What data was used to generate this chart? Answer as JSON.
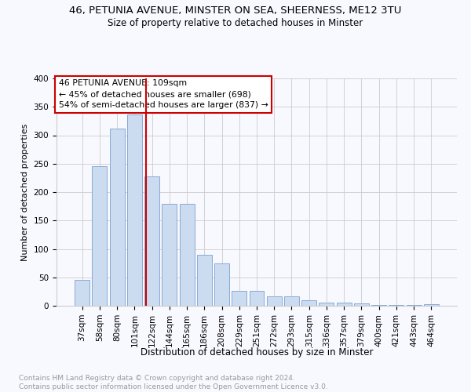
{
  "title1": "46, PETUNIA AVENUE, MINSTER ON SEA, SHEERNESS, ME12 3TU",
  "title2": "Size of property relative to detached houses in Minster",
  "xlabel": "Distribution of detached houses by size in Minster",
  "ylabel": "Number of detached properties",
  "footer1": "Contains HM Land Registry data © Crown copyright and database right 2024.",
  "footer2": "Contains public sector information licensed under the Open Government Licence v3.0.",
  "bar_labels": [
    "37sqm",
    "58sqm",
    "80sqm",
    "101sqm",
    "122sqm",
    "144sqm",
    "165sqm",
    "186sqm",
    "208sqm",
    "229sqm",
    "251sqm",
    "272sqm",
    "293sqm",
    "315sqm",
    "336sqm",
    "357sqm",
    "379sqm",
    "400sqm",
    "421sqm",
    "443sqm",
    "464sqm"
  ],
  "bar_values": [
    45,
    246,
    312,
    336,
    228,
    180,
    180,
    90,
    75,
    26,
    26,
    17,
    17,
    9,
    5,
    5,
    4,
    2,
    1,
    1,
    3
  ],
  "bar_color": "#ccdcf0",
  "bar_edge_color": "#88aad4",
  "vline_x": 3.65,
  "vline_label": "46 PETUNIA AVENUE: 109sqm",
  "annotation_line1": "← 45% of detached houses are smaller (698)",
  "annotation_line2": "54% of semi-detached houses are larger (837) →",
  "annotation_box_color": "#ffffff",
  "annotation_box_edge": "#cc0000",
  "vline_color": "#cc0000",
  "ylim": [
    0,
    400
  ],
  "yticks": [
    0,
    50,
    100,
    150,
    200,
    250,
    300,
    350,
    400
  ],
  "grid_color": "#cccccc",
  "bg_color": "#f8f8ff",
  "title1_fontsize": 9.5,
  "title2_fontsize": 8.5,
  "xlabel_fontsize": 8.5,
  "ylabel_fontsize": 8.0,
  "tick_fontsize": 7.5,
  "annot_fontsize": 7.8,
  "footer_fontsize": 6.5
}
